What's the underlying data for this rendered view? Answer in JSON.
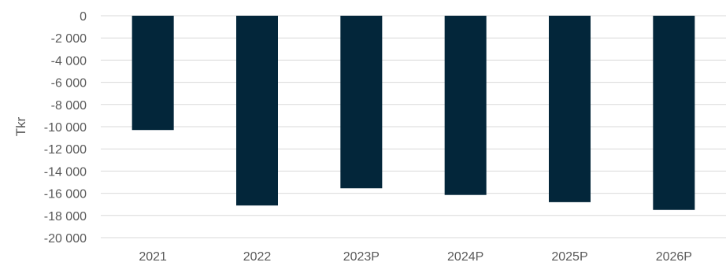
{
  "chart_data": {
    "type": "bar",
    "title": "",
    "xlabel": "",
    "ylabel": "Tkr",
    "categories": [
      "2021",
      "2022",
      "2023P",
      "2024P",
      "2025P",
      "2026P"
    ],
    "values": [
      -10300,
      -17100,
      -15550,
      -16150,
      -16800,
      -17500
    ],
    "ylim": [
      -20000,
      0
    ],
    "y_ticks": [
      0,
      -2000,
      -4000,
      -6000,
      -8000,
      -10000,
      -12000,
      -14000,
      -16000,
      -18000,
      -20000
    ],
    "y_tick_labels": [
      "0",
      "-2 000",
      "-4 000",
      "-6 000",
      "-8 000",
      "-10 000",
      "-12 000",
      "-14 000",
      "-16 000",
      "-18 000",
      "-20 000"
    ],
    "grid": true,
    "legend": "none",
    "bar_color": "#03263a"
  }
}
